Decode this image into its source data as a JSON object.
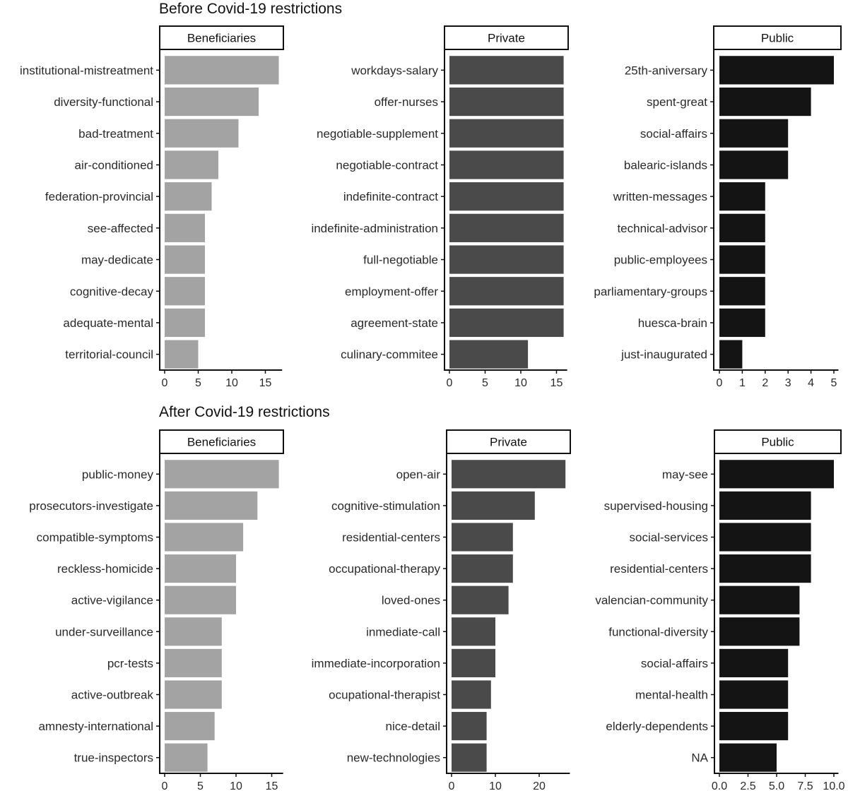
{
  "chart_data": [
    {
      "type": "bar",
      "orientation": "horizontal",
      "title": "Before Covid-19 restrictions",
      "panels": [
        {
          "facet": "Beneficiaries",
          "color": "#a3a3a3",
          "categories": [
            "institutional-mistreatment",
            "diversity-functional",
            "bad-treatment",
            "air-conditioned",
            "federation-provincial",
            "see-affected",
            "may-dedicate",
            "cognitive-decay",
            "adequate-mental",
            "territorial-council"
          ],
          "values": [
            17,
            14,
            11,
            8,
            7,
            6,
            6,
            6,
            6,
            5
          ],
          "xticks": [
            0,
            5,
            10,
            15
          ],
          "xtick_labels": [
            "0",
            "5",
            "10",
            "15"
          ],
          "xlim": [
            0,
            17.5
          ]
        },
        {
          "facet": "Private",
          "color": "#4a4a4a",
          "categories": [
            "workdays-salary",
            "offer-nurses",
            "negotiable-supplement",
            "negotiable-contract",
            "indefinite-contract",
            "indefinite-administration",
            "full-negotiable",
            "employment-offer",
            "agreement-state",
            "culinary-commitee"
          ],
          "values": [
            16,
            16,
            16,
            16,
            16,
            16,
            16,
            16,
            16,
            11
          ],
          "xticks": [
            0,
            5,
            10,
            15
          ],
          "xtick_labels": [
            "0",
            "5",
            "10",
            "15"
          ],
          "xlim": [
            0,
            16.5
          ]
        },
        {
          "facet": "Public",
          "color": "#141414",
          "categories": [
            "25th-aniversary",
            "spent-great",
            "social-affairs",
            "balearic-islands",
            "written-messages",
            "technical-advisor",
            "public-employees",
            "parliamentary-groups",
            "huesca-brain",
            "just-inaugurated"
          ],
          "values": [
            5,
            4,
            3,
            3,
            2,
            2,
            2,
            2,
            2,
            1
          ],
          "xticks": [
            0,
            1,
            2,
            3,
            4,
            5
          ],
          "xtick_labels": [
            "0",
            "1",
            "2",
            "3",
            "4",
            "5"
          ],
          "xlim": [
            0,
            5.2
          ]
        }
      ]
    },
    {
      "type": "bar",
      "orientation": "horizontal",
      "title": "After Covid-19 restrictions",
      "panels": [
        {
          "facet": "Beneficiaries",
          "color": "#a3a3a3",
          "categories": [
            "public-money",
            "prosecutors-investigate",
            "compatible-symptoms",
            "reckless-homicide",
            "active-vigilance",
            "under-surveillance",
            "pcr-tests",
            "active-outbreak",
            "amnesty-international",
            "true-inspectors"
          ],
          "values": [
            16,
            13,
            11,
            10,
            10,
            8,
            8,
            8,
            7,
            6
          ],
          "xticks": [
            0,
            5,
            10,
            15
          ],
          "xtick_labels": [
            "0",
            "5",
            "10",
            "15"
          ],
          "xlim": [
            0,
            16.6
          ]
        },
        {
          "facet": "Private",
          "color": "#4a4a4a",
          "categories": [
            "open-air",
            "cognitive-stimulation",
            "residential-centers",
            "occupational-therapy",
            "loved-ones",
            "inmediate-call",
            "immediate-incorporation",
            "ocupational-therapist",
            "nice-detail",
            "new-technologies"
          ],
          "values": [
            26,
            19,
            14,
            14,
            13,
            10,
            10,
            9,
            8,
            8
          ],
          "xticks": [
            0,
            10,
            20
          ],
          "xtick_labels": [
            "0",
            "10",
            "20"
          ],
          "xlim": [
            0,
            27
          ]
        },
        {
          "facet": "Public",
          "color": "#141414",
          "categories": [
            "may-see",
            "supervised-housing",
            "social-services",
            "residential-centers",
            "valencian-community",
            "functional-diversity",
            "social-affairs",
            "mental-health",
            "elderly-dependents",
            "NA"
          ],
          "values": [
            10,
            8,
            8,
            8,
            7,
            7,
            6,
            6,
            6,
            5
          ],
          "xticks": [
            0,
            2.5,
            5,
            7.5,
            10
          ],
          "xtick_labels": [
            "0.0",
            "2.5",
            "5.0",
            "7.5",
            "10.0"
          ],
          "xlim": [
            0,
            10.4
          ]
        }
      ]
    }
  ]
}
